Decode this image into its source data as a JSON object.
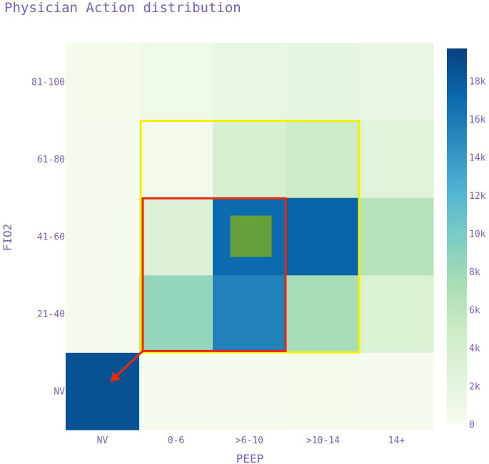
{
  "chart_data": {
    "type": "heatmap",
    "title": "Physician Action distribution",
    "xlabel": "PEEP",
    "ylabel": "FIO2",
    "x_categories": [
      "NV",
      "0-6",
      ">6-10",
      ">10-14",
      "14+"
    ],
    "y_categories": [
      "NV",
      "21-40",
      "41-60",
      "61-80",
      "81-100"
    ],
    "z": [
      [
        18600,
        150,
        250,
        300,
        150
      ],
      [
        200,
        8500,
        15500,
        7500,
        3200
      ],
      [
        200,
        3000,
        17000,
        17500,
        6500
      ],
      [
        250,
        600,
        3500,
        4800,
        2500
      ],
      [
        300,
        900,
        1600,
        1800,
        1400
      ]
    ],
    "zmin": 0,
    "zmax": 19700,
    "colorscale": "GnBu",
    "colorbar_ticks": [
      "0",
      "2k",
      "4k",
      "6k",
      "8k",
      "10k",
      "12k",
      "14k",
      "16k",
      "18k"
    ],
    "colorbar_tick_values": [
      0,
      2000,
      4000,
      6000,
      8000,
      10000,
      12000,
      14000,
      16000,
      18000
    ],
    "annotations": {
      "outer_box": {
        "x_range": [
          "0-6",
          ">10-14"
        ],
        "y_range": [
          "21-40",
          "61-80"
        ],
        "color": "#f5f000"
      },
      "inner_box": {
        "x_range": [
          "0-6",
          ">6-10"
        ],
        "y_range": [
          "21-40",
          "41-60"
        ],
        "color": "#e8280a"
      },
      "highlight_cell": {
        "x": ">6-10",
        "y": "41-60",
        "color": "#66a03a"
      },
      "arrow": {
        "from": "corner",
        "to": "NV",
        "color": "#e8280a"
      }
    },
    "text_color": "#7a5fb0"
  }
}
